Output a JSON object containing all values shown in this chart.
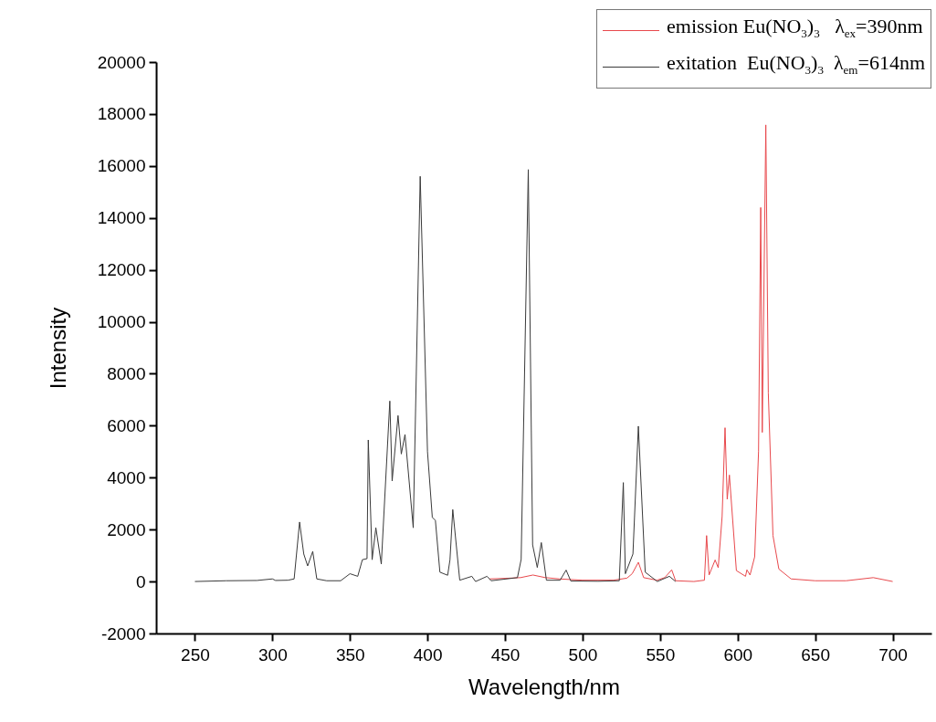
{
  "chart_data": {
    "type": "line",
    "xlabel": "Wavelength/nm",
    "ylabel": "Intensity",
    "xlim": [
      225,
      725
    ],
    "ylim": [
      -2000,
      20000
    ],
    "xticks": [
      250,
      300,
      350,
      400,
      450,
      500,
      550,
      600,
      650,
      700
    ],
    "yticks": [
      -2000,
      0,
      2000,
      4000,
      6000,
      8000,
      10000,
      12000,
      14000,
      16000,
      18000,
      20000
    ],
    "grid": false,
    "legend": "top right",
    "series": [
      {
        "name": "emission Eu(NO$_{3}$)$_{3}$   λ$_{ex}$=390nm",
        "color": "#e8484c",
        "x": [
          440,
          450,
          460,
          468,
          476,
          485,
          500,
          520,
          528.6,
          532,
          536,
          539.4,
          548,
          553,
          557.5,
          560,
          571.8,
          578.6,
          580,
          581.6,
          585.5,
          587.5,
          590,
          591.9,
          593.3,
          594.7,
          599.2,
          605.1,
          606,
          608,
          611,
          613.5,
          614.9,
          615.9,
          618.2,
          619.8,
          622.8,
          626.6,
          634.5,
          650,
          670,
          687.5,
          700
        ],
        "values": [
          100,
          120,
          150,
          250,
          150,
          100,
          50,
          50,
          130,
          300,
          740,
          150,
          50,
          150,
          450,
          30,
          0,
          50,
          1770,
          250,
          830,
          530,
          2500,
          5920,
          3170,
          4100,
          420,
          200,
          450,
          250,
          950,
          5000,
          14400,
          5740,
          17580,
          7260,
          1770,
          480,
          100,
          30,
          30,
          150,
          0
        ]
      },
      {
        "name": "exitation  Eu(NO$_{3}$)$_{3}$  λ$_{em}$=614nm",
        "color": "#3a3a3a",
        "x": [
          250,
          270,
          290,
          300,
          302,
          310,
          314,
          317.5,
          320.2,
          322.7,
          326,
          328.6,
          335,
          344,
          350,
          355,
          358,
          361,
          361.8,
          364.3,
          366.7,
          370.2,
          375.7,
          377.2,
          381,
          383.1,
          385.5,
          390.8,
          395.3,
          400,
          403.1,
          405.1,
          408,
          413,
          414.5,
          416.3,
          420.8,
          428.6,
          431,
          438.4,
          441,
          458,
          460.4,
          465,
          467.8,
          470.8,
          473.4,
          476.7,
          485.5,
          489.4,
          492.4,
          510,
          523.7,
          526.3,
          527.6,
          532.5,
          536,
          540.4,
          548.2,
          556,
          560
        ],
        "values": [
          0,
          30,
          40,
          100,
          40,
          50,
          100,
          2290,
          1060,
          600,
          1160,
          100,
          30,
          30,
          300,
          200,
          840,
          880,
          5450,
          840,
          2070,
          670,
          6950,
          3870,
          6390,
          4910,
          5660,
          2070,
          15600,
          5000,
          2470,
          2350,
          360,
          240,
          840,
          2770,
          50,
          200,
          0,
          200,
          30,
          150,
          850,
          15860,
          1410,
          540,
          1500,
          50,
          50,
          440,
          20,
          10,
          30,
          3810,
          300,
          1060,
          5980,
          360,
          0,
          200,
          0
        ]
      }
    ]
  }
}
